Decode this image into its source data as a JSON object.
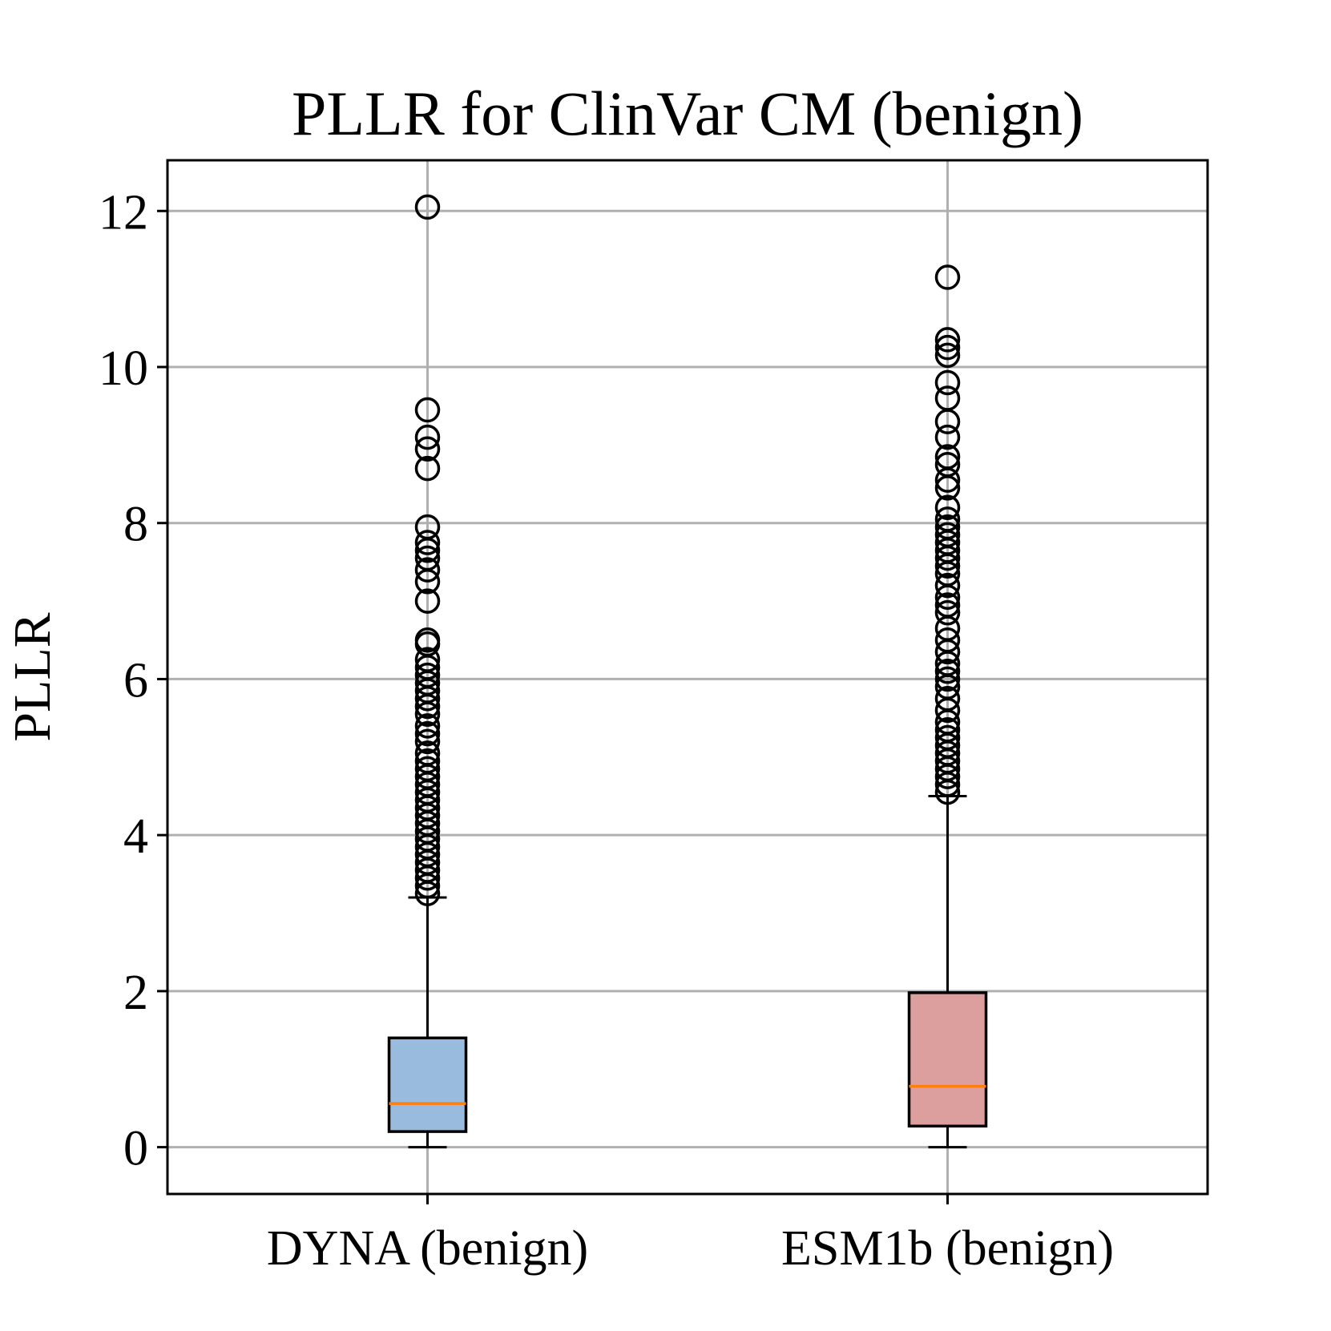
{
  "chart_data": {
    "type": "box",
    "title": "PLLR for ClinVar CM (benign)",
    "xlabel": "",
    "ylabel": "PLLR",
    "ylim": [
      -0.6,
      12.65
    ],
    "yticks": [
      0,
      2,
      4,
      6,
      8,
      10,
      12
    ],
    "grid": true,
    "categories": [
      "DYNA (benign)",
      "ESM1b (benign)"
    ],
    "boxes": [
      {
        "label": "DYNA (benign)",
        "whisker_low": 0.0,
        "q1": 0.2,
        "median": 0.56,
        "q3": 1.4,
        "whisker_high": 3.2,
        "fill": "#99bbdd",
        "outliers": [
          12.05,
          9.45,
          9.1,
          8.95,
          8.7,
          7.95,
          7.75,
          7.65,
          7.55,
          7.4,
          7.25,
          7.0,
          6.5,
          6.45,
          6.25,
          6.15,
          6.05,
          5.95,
          5.85,
          5.75,
          5.65,
          5.55,
          5.4,
          5.3,
          5.2,
          5.05,
          4.95,
          4.85,
          4.75,
          4.65,
          4.55,
          4.45,
          4.35,
          4.25,
          4.15,
          4.05,
          3.95,
          3.85,
          3.75,
          3.65,
          3.55,
          3.45,
          3.35,
          3.25
        ]
      },
      {
        "label": "ESM1b (benign)",
        "whisker_low": 0.0,
        "q1": 0.27,
        "median": 0.78,
        "q3": 1.98,
        "whisker_high": 4.5,
        "fill": "#dd9e9e",
        "outliers": [
          11.15,
          10.35,
          10.25,
          10.15,
          9.8,
          9.6,
          9.3,
          9.1,
          8.85,
          8.75,
          8.55,
          8.45,
          8.2,
          8.05,
          7.95,
          7.85,
          7.75,
          7.65,
          7.55,
          7.45,
          7.35,
          7.2,
          7.05,
          6.95,
          6.85,
          6.65,
          6.5,
          6.35,
          6.2,
          6.1,
          6.0,
          5.9,
          5.75,
          5.6,
          5.45,
          5.35,
          5.25,
          5.15,
          5.05,
          4.95,
          4.85,
          4.75,
          4.65,
          4.55
        ]
      }
    ],
    "colors": {
      "median": "#ff7f0e",
      "grid": "#b0b0b0",
      "axis": "#000000"
    }
  }
}
